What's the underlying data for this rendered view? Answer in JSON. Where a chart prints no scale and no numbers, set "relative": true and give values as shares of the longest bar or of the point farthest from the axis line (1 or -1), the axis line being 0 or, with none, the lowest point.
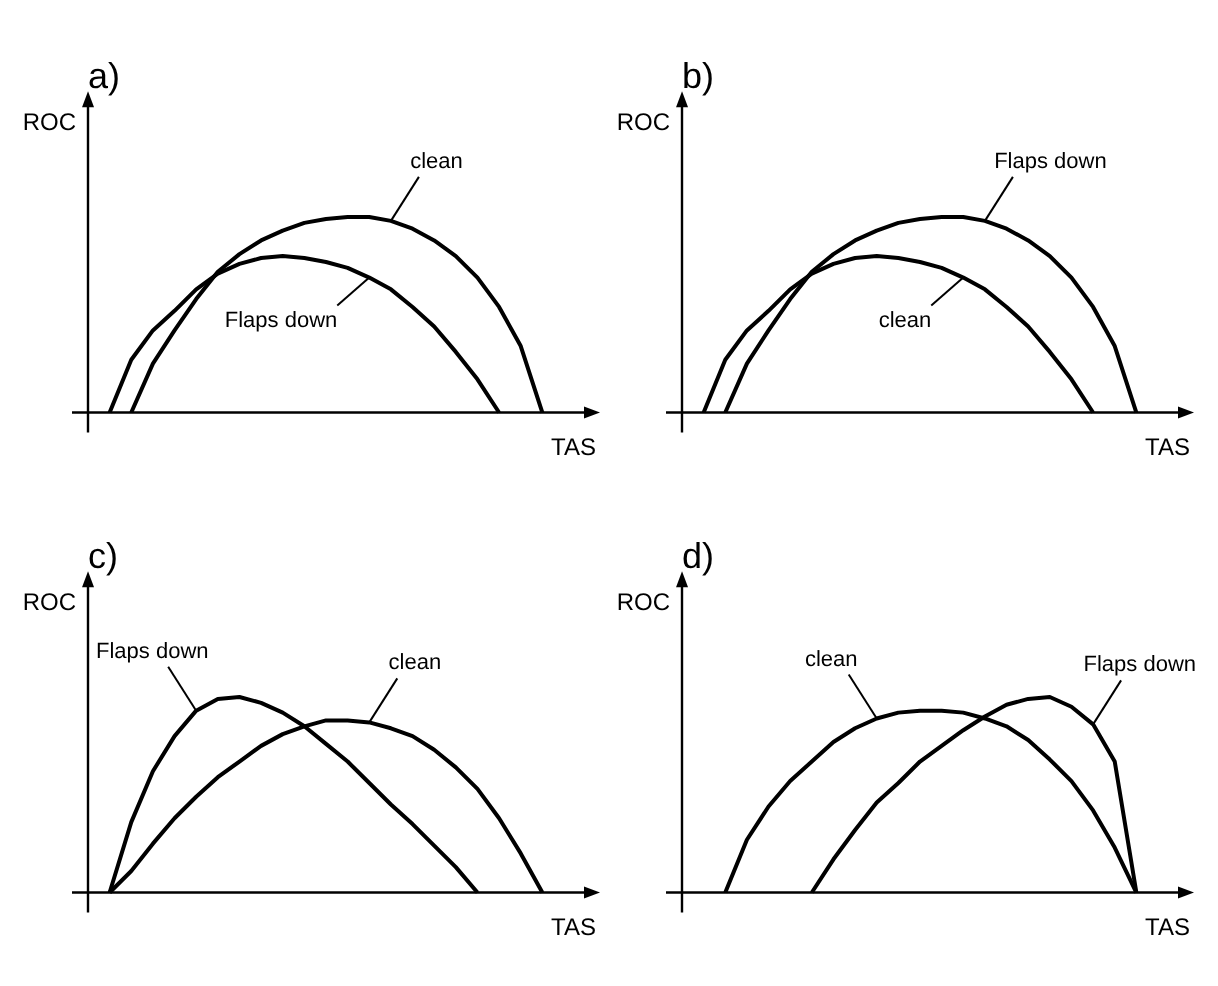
{
  "chart_data": [
    {
      "type": "line",
      "title": "a)",
      "xlabel": "TAS",
      "ylabel": "ROC",
      "relative": true,
      "marker": "none",
      "categories": [
        null,
        null,
        null,
        null,
        null,
        null,
        null,
        null,
        null,
        null,
        null,
        null,
        null,
        null,
        null,
        null,
        null,
        null,
        null,
        null,
        null,
        null,
        null
      ],
      "series": [
        {
          "name": "clean",
          "color": "#000000",
          "values": [
            null,
            null,
            0,
            0.25,
            0.42,
            0.58,
            0.72,
            0.81,
            0.88,
            0.93,
            0.97,
            0.99,
            1.0,
            1.0,
            0.98,
            0.94,
            0.88,
            0.8,
            0.69,
            0.54,
            0.34,
            0,
            null
          ]
        },
        {
          "name": "Flaps down",
          "color": "#000000",
          "values": [
            null,
            0,
            0.27,
            0.42,
            0.52,
            0.63,
            0.71,
            0.76,
            0.79,
            0.8,
            0.79,
            0.77,
            0.74,
            0.69,
            0.63,
            0.54,
            0.44,
            0.31,
            0.17,
            0,
            null,
            null,
            null
          ]
        }
      ]
    },
    {
      "type": "line",
      "title": "b)",
      "xlabel": "TAS",
      "ylabel": "ROC",
      "relative": true,
      "marker": "none",
      "categories": [
        null,
        null,
        null,
        null,
        null,
        null,
        null,
        null,
        null,
        null,
        null,
        null,
        null,
        null,
        null,
        null,
        null,
        null,
        null,
        null,
        null,
        null,
        null
      ],
      "series": [
        {
          "name": "Flaps down",
          "color": "#000000",
          "values": [
            null,
            null,
            0,
            0.25,
            0.42,
            0.58,
            0.72,
            0.81,
            0.88,
            0.93,
            0.97,
            0.99,
            1.0,
            1.0,
            0.98,
            0.94,
            0.88,
            0.8,
            0.69,
            0.54,
            0.34,
            0,
            null
          ]
        },
        {
          "name": "clean",
          "color": "#000000",
          "values": [
            null,
            0,
            0.27,
            0.42,
            0.52,
            0.63,
            0.71,
            0.76,
            0.79,
            0.8,
            0.79,
            0.77,
            0.74,
            0.69,
            0.63,
            0.54,
            0.44,
            0.31,
            0.17,
            0,
            null,
            null,
            null
          ]
        }
      ]
    },
    {
      "type": "line",
      "title": "c)",
      "xlabel": "TAS",
      "ylabel": "ROC",
      "relative": true,
      "marker": "none",
      "categories": [
        null,
        null,
        null,
        null,
        null,
        null,
        null,
        null,
        null,
        null,
        null,
        null,
        null,
        null,
        null,
        null,
        null,
        null,
        null,
        null,
        null,
        null,
        null
      ],
      "series": [
        {
          "name": "Flaps down",
          "color": "#000000",
          "values": [
            null,
            0,
            0.36,
            0.62,
            0.8,
            0.93,
            0.99,
            1.0,
            0.97,
            0.92,
            0.85,
            0.76,
            0.67,
            0.56,
            0.45,
            0.35,
            0.24,
            0.13,
            0,
            null,
            null,
            null,
            null
          ]
        },
        {
          "name": "clean",
          "color": "#000000",
          "values": [
            null,
            0,
            0.11,
            0.25,
            0.38,
            0.49,
            0.59,
            0.67,
            0.75,
            0.81,
            0.85,
            0.88,
            0.88,
            0.87,
            0.84,
            0.8,
            0.73,
            0.64,
            0.53,
            0.38,
            0.2,
            0,
            null
          ]
        }
      ]
    },
    {
      "type": "line",
      "title": "d)",
      "xlabel": "TAS",
      "ylabel": "ROC",
      "relative": true,
      "marker": "none",
      "categories": [
        null,
        null,
        null,
        null,
        null,
        null,
        null,
        null,
        null,
        null,
        null,
        null,
        null,
        null,
        null,
        null,
        null,
        null,
        null,
        null,
        null,
        null,
        null
      ],
      "series": [
        {
          "name": "clean",
          "color": "#000000",
          "values": [
            null,
            null,
            0,
            0.27,
            0.44,
            0.57,
            0.67,
            0.77,
            0.84,
            0.89,
            0.92,
            0.93,
            0.93,
            0.92,
            0.89,
            0.85,
            0.78,
            0.68,
            0.57,
            0.42,
            0.23,
            0,
            null
          ]
        },
        {
          "name": "Flaps down",
          "color": "#000000",
          "values": [
            null,
            null,
            null,
            null,
            null,
            null,
            0,
            0.17,
            0.32,
            0.46,
            0.56,
            0.67,
            0.75,
            0.83,
            0.9,
            0.96,
            0.99,
            1.0,
            0.95,
            0.86,
            0.67,
            0,
            null
          ]
        }
      ]
    }
  ]
}
